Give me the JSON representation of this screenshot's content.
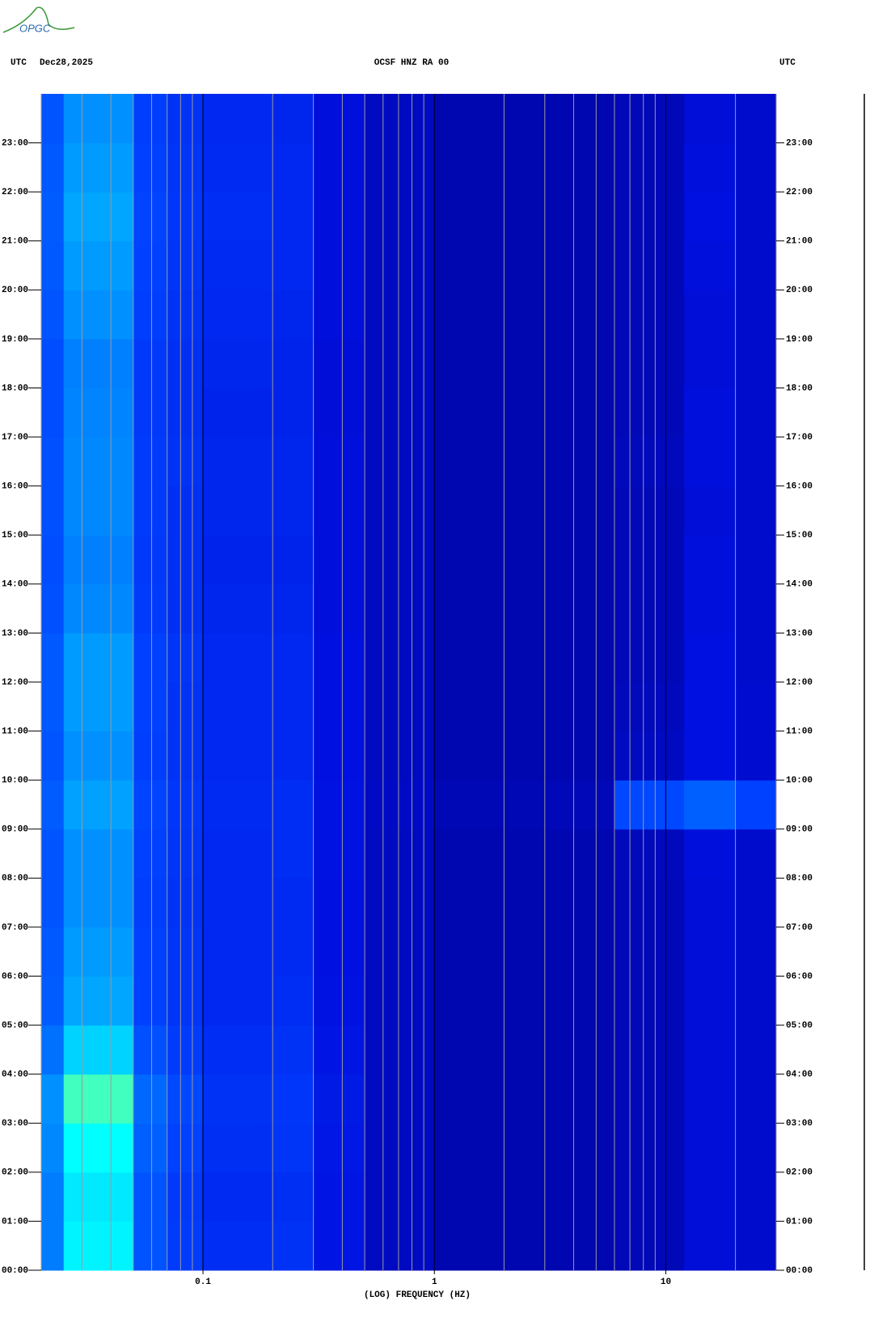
{
  "logo": "OPGC",
  "chart_data": {
    "type": "spectrogram",
    "title": "OCSF HNZ RA 00",
    "date": "Dec28,2025",
    "left_label": "UTC",
    "right_label": "UTC",
    "xlabel": "(LOG) FREQUENCY (HZ)",
    "xscale": "log",
    "xlim": [
      0.02,
      30
    ],
    "xticks": [
      0.1,
      1,
      10
    ],
    "xminor": [
      0.02,
      0.03,
      0.04,
      0.05,
      0.06,
      0.07,
      0.08,
      0.09,
      0.2,
      0.3,
      0.4,
      0.5,
      0.6,
      0.7,
      0.8,
      0.9,
      2,
      3,
      4,
      5,
      6,
      7,
      8,
      9,
      20,
      30
    ],
    "grid": true,
    "ylim": [
      0,
      24
    ],
    "yticks": [
      {
        "value": 0,
        "label": "00:00"
      },
      {
        "value": 1,
        "label": "01:00"
      },
      {
        "value": 2,
        "label": "02:00"
      },
      {
        "value": 3,
        "label": "03:00"
      },
      {
        "value": 4,
        "label": "04:00"
      },
      {
        "value": 5,
        "label": "05:00"
      },
      {
        "value": 6,
        "label": "06:00"
      },
      {
        "value": 7,
        "label": "07:00"
      },
      {
        "value": 8,
        "label": "08:00"
      },
      {
        "value": 9,
        "label": "09:00"
      },
      {
        "value": 10,
        "label": "10:00"
      },
      {
        "value": 11,
        "label": "11:00"
      },
      {
        "value": 12,
        "label": "12:00"
      },
      {
        "value": 13,
        "label": "13:00"
      },
      {
        "value": 14,
        "label": "14:00"
      },
      {
        "value": 15,
        "label": "15:00"
      },
      {
        "value": 16,
        "label": "16:00"
      },
      {
        "value": 17,
        "label": "17:00"
      },
      {
        "value": 18,
        "label": "18:00"
      },
      {
        "value": 19,
        "label": "19:00"
      },
      {
        "value": 20,
        "label": "20:00"
      },
      {
        "value": 21,
        "label": "21:00"
      },
      {
        "value": 22,
        "label": "22:00"
      },
      {
        "value": 23,
        "label": "23:00"
      }
    ],
    "freq_bins": [
      0.02,
      0.025,
      0.04,
      0.05,
      0.07,
      0.1,
      0.2,
      0.3,
      0.5,
      1,
      3,
      6,
      12,
      20,
      30
    ],
    "time_bins": [
      0,
      1,
      2,
      3,
      4,
      5,
      6,
      7,
      8,
      9,
      10,
      11,
      12,
      13,
      14,
      15,
      16,
      17,
      18,
      19,
      20,
      21,
      22,
      23,
      24
    ],
    "colormap": [
      "#000090",
      "#0010e0",
      "#0040ff",
      "#0090ff",
      "#00ffff",
      "#ffff00"
    ],
    "z": [
      [
        0.55,
        0.78,
        0.78,
        0.45,
        0.38,
        0.32,
        0.34,
        0.22,
        0.12,
        0.08,
        0.08,
        0.1,
        0.18,
        0.15
      ],
      [
        0.55,
        0.76,
        0.76,
        0.45,
        0.37,
        0.31,
        0.33,
        0.22,
        0.12,
        0.08,
        0.08,
        0.1,
        0.18,
        0.15
      ],
      [
        0.58,
        0.8,
        0.8,
        0.48,
        0.4,
        0.33,
        0.35,
        0.23,
        0.12,
        0.08,
        0.08,
        0.1,
        0.18,
        0.15
      ],
      [
        0.6,
        0.85,
        0.85,
        0.5,
        0.42,
        0.34,
        0.36,
        0.24,
        0.12,
        0.08,
        0.08,
        0.1,
        0.18,
        0.15
      ],
      [
        0.52,
        0.72,
        0.72,
        0.44,
        0.38,
        0.32,
        0.34,
        0.22,
        0.12,
        0.08,
        0.08,
        0.1,
        0.18,
        0.15
      ],
      [
        0.47,
        0.64,
        0.64,
        0.4,
        0.35,
        0.3,
        0.32,
        0.21,
        0.12,
        0.08,
        0.08,
        0.1,
        0.18,
        0.15
      ],
      [
        0.46,
        0.62,
        0.62,
        0.4,
        0.35,
        0.3,
        0.31,
        0.2,
        0.12,
        0.08,
        0.08,
        0.1,
        0.18,
        0.15
      ],
      [
        0.45,
        0.6,
        0.6,
        0.39,
        0.34,
        0.3,
        0.31,
        0.2,
        0.12,
        0.08,
        0.08,
        0.1,
        0.18,
        0.15
      ],
      [
        0.45,
        0.6,
        0.6,
        0.4,
        0.35,
        0.3,
        0.32,
        0.21,
        0.12,
        0.08,
        0.08,
        0.11,
        0.19,
        0.15
      ],
      [
        0.47,
        0.63,
        0.63,
        0.41,
        0.36,
        0.31,
        0.32,
        0.21,
        0.13,
        0.09,
        0.1,
        0.42,
        0.48,
        0.4
      ],
      [
        0.45,
        0.6,
        0.6,
        0.39,
        0.34,
        0.3,
        0.3,
        0.2,
        0.12,
        0.08,
        0.08,
        0.12,
        0.2,
        0.16
      ],
      [
        0.46,
        0.62,
        0.62,
        0.4,
        0.34,
        0.3,
        0.3,
        0.2,
        0.12,
        0.08,
        0.08,
        0.11,
        0.2,
        0.16
      ],
      [
        0.46,
        0.62,
        0.62,
        0.4,
        0.35,
        0.3,
        0.3,
        0.2,
        0.12,
        0.08,
        0.08,
        0.1,
        0.2,
        0.15
      ],
      [
        0.44,
        0.58,
        0.58,
        0.38,
        0.33,
        0.29,
        0.29,
        0.19,
        0.12,
        0.08,
        0.08,
        0.1,
        0.19,
        0.15
      ],
      [
        0.43,
        0.56,
        0.56,
        0.37,
        0.33,
        0.28,
        0.28,
        0.19,
        0.12,
        0.08,
        0.08,
        0.1,
        0.19,
        0.15
      ],
      [
        0.44,
        0.58,
        0.58,
        0.38,
        0.33,
        0.29,
        0.29,
        0.19,
        0.12,
        0.08,
        0.08,
        0.1,
        0.18,
        0.15
      ],
      [
        0.44,
        0.58,
        0.58,
        0.38,
        0.34,
        0.29,
        0.29,
        0.19,
        0.12,
        0.08,
        0.08,
        0.11,
        0.19,
        0.15
      ],
      [
        0.43,
        0.57,
        0.57,
        0.37,
        0.33,
        0.28,
        0.28,
        0.18,
        0.12,
        0.08,
        0.08,
        0.1,
        0.19,
        0.15
      ],
      [
        0.43,
        0.56,
        0.56,
        0.37,
        0.33,
        0.29,
        0.28,
        0.18,
        0.12,
        0.08,
        0.08,
        0.1,
        0.18,
        0.15
      ],
      [
        0.45,
        0.6,
        0.6,
        0.39,
        0.34,
        0.3,
        0.29,
        0.19,
        0.12,
        0.08,
        0.08,
        0.1,
        0.18,
        0.15
      ],
      [
        0.46,
        0.62,
        0.62,
        0.4,
        0.35,
        0.31,
        0.3,
        0.19,
        0.12,
        0.08,
        0.08,
        0.1,
        0.19,
        0.15
      ],
      [
        0.47,
        0.64,
        0.64,
        0.41,
        0.36,
        0.32,
        0.3,
        0.19,
        0.12,
        0.08,
        0.08,
        0.1,
        0.2,
        0.15
      ],
      [
        0.46,
        0.62,
        0.62,
        0.4,
        0.35,
        0.31,
        0.3,
        0.19,
        0.12,
        0.08,
        0.08,
        0.1,
        0.19,
        0.15
      ],
      [
        0.45,
        0.6,
        0.6,
        0.39,
        0.34,
        0.3,
        0.29,
        0.19,
        0.12,
        0.08,
        0.08,
        0.1,
        0.18,
        0.15
      ]
    ]
  }
}
